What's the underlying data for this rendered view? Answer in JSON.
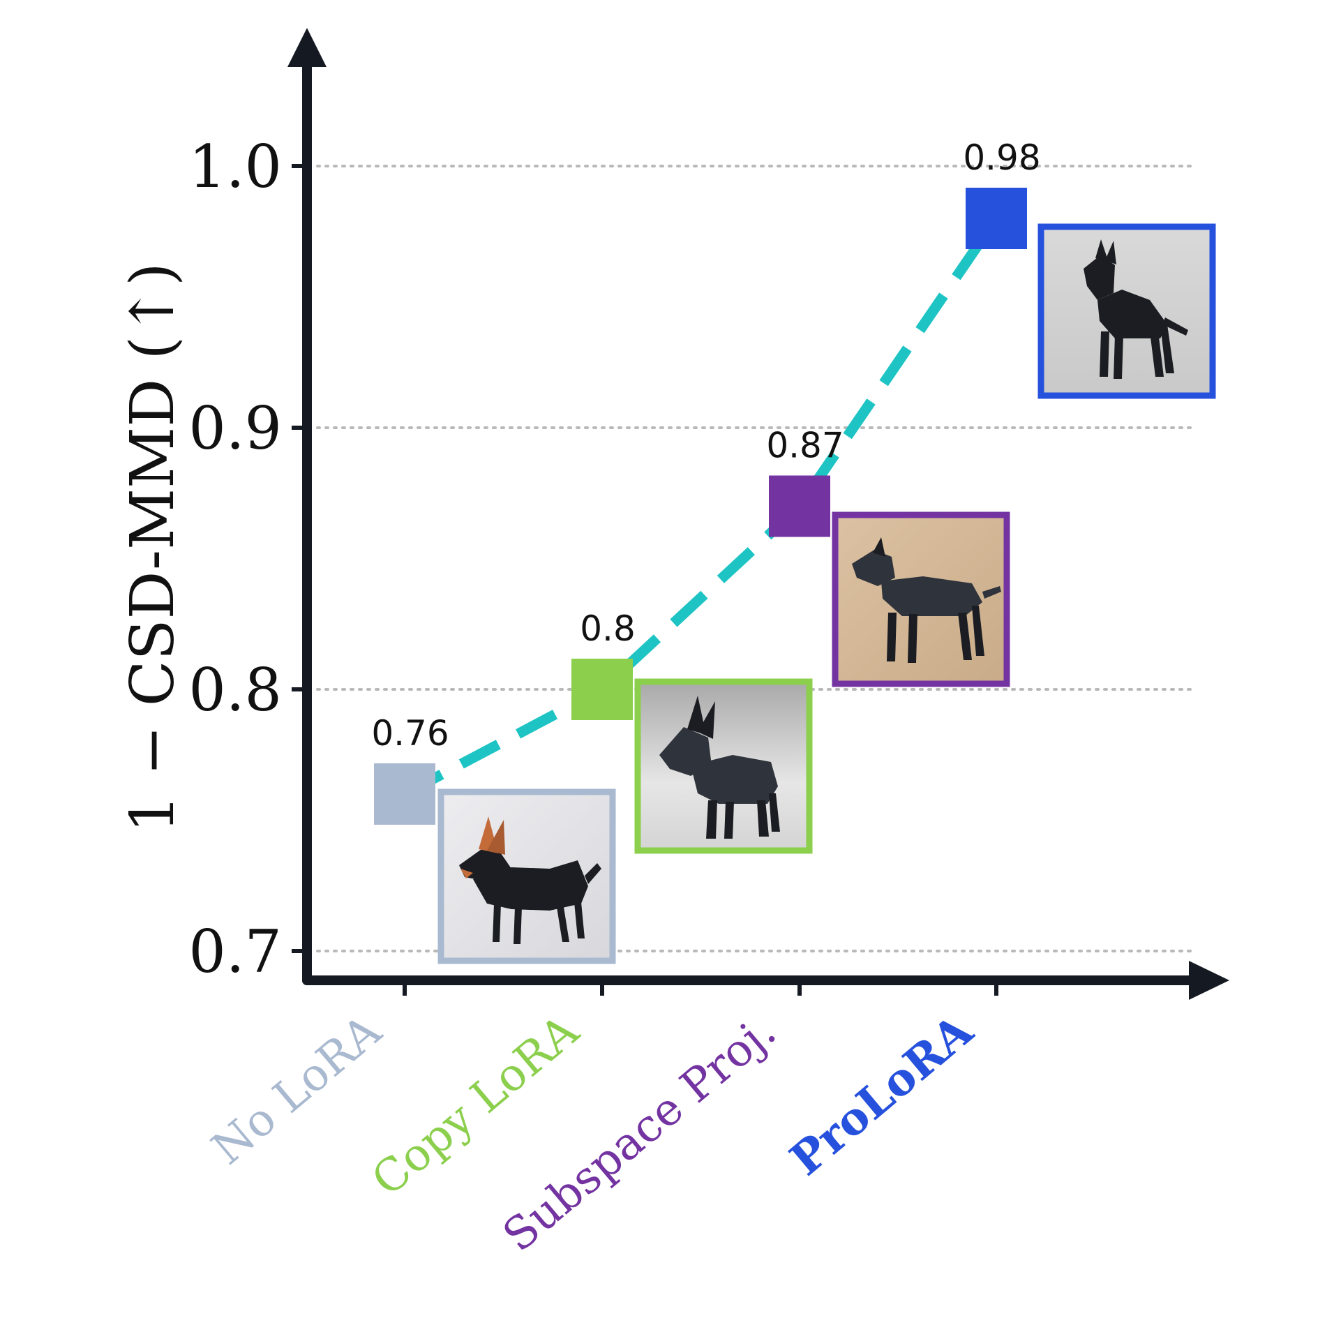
{
  "chart_data": {
    "type": "line",
    "ylabel": "1 − CSD-MMD (↑)",
    "ylim": [
      0.692,
      1.05
    ],
    "yticks": [
      0.7,
      0.8,
      0.9,
      1.0
    ],
    "ytick_labels": [
      "0.7",
      "0.8",
      "0.9",
      "1.0"
    ],
    "grid": true,
    "categories": [
      "No LoRA",
      "Copy LoRA",
      "Subspace Proj.",
      "ProLoRA"
    ],
    "values": [
      0.76,
      0.8,
      0.87,
      0.98
    ],
    "data_labels": [
      "0.76",
      "0.8",
      "0.87",
      "0.98"
    ],
    "colors": [
      "#a9b9d0",
      "#8bcf4d",
      "#7333a1",
      "#2651dd"
    ],
    "line_color": "#1ec4c4",
    "line_style": "dashed",
    "bold_category": "ProLoRA",
    "thumbnails": [
      {
        "for": "No LoRA",
        "depicts": "origami doberman with tan markings"
      },
      {
        "for": "Copy LoRA",
        "depicts": "grey geometric origami doberman"
      },
      {
        "for": "Subspace Proj.",
        "depicts": "dark origami doberman on tan background"
      },
      {
        "for": "ProLoRA",
        "depicts": "black origami doberman on grey background"
      }
    ]
  }
}
